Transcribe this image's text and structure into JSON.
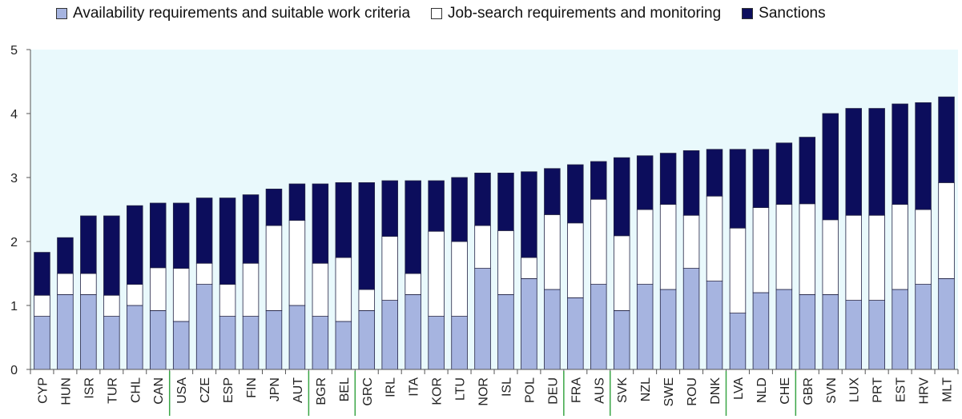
{
  "chart_data": {
    "type": "bar",
    "stacked": true,
    "title": "",
    "xlabel": "",
    "ylabel": "",
    "ylim": [
      0,
      5
    ],
    "yticks": [
      0,
      1,
      2,
      3,
      4,
      5
    ],
    "grid": false,
    "legend_position": "top",
    "plot_background": "#e9f9fc",
    "categories": [
      "CYP",
      "HUN",
      "ISR",
      "TUR",
      "CHL",
      "CAN",
      "USA",
      "CZE",
      "ESP",
      "FIN",
      "JPN",
      "AUT",
      "BGR",
      "BEL",
      "GRC",
      "IRL",
      "ITA",
      "KOR",
      "LTU",
      "NOR",
      "ISL",
      "POL",
      "DEU",
      "FRA",
      "AUS",
      "SVK",
      "NZL",
      "SWE",
      "ROU",
      "DNK",
      "LVA",
      "NLD",
      "CHE",
      "GBR",
      "SVN",
      "LUX",
      "PRT",
      "EST",
      "HRV",
      "MLT"
    ],
    "green_separator_before": [
      "USA",
      "BGR",
      "GRC",
      "FRA",
      "SVK",
      "LVA",
      "GBR"
    ],
    "series": [
      {
        "name": "Availability requirements and suitable work criteria",
        "color": "#a6b4e0",
        "values": [
          0.83,
          1.17,
          1.17,
          0.83,
          1.0,
          0.92,
          0.75,
          1.33,
          0.83,
          0.83,
          0.92,
          1.0,
          0.83,
          0.75,
          0.92,
          1.08,
          1.17,
          0.83,
          0.83,
          1.58,
          1.17,
          1.42,
          1.25,
          1.12,
          1.33,
          0.92,
          1.33,
          1.25,
          1.58,
          1.38,
          0.88,
          1.2,
          1.25,
          1.17,
          1.17,
          1.08,
          1.08,
          1.25,
          1.33,
          1.42
        ]
      },
      {
        "name": "Job-search requirements and monitoring",
        "color": "#ffffff",
        "values": [
          0.33,
          0.33,
          0.33,
          0.33,
          0.33,
          0.67,
          0.83,
          0.33,
          0.5,
          0.83,
          1.33,
          1.33,
          0.83,
          1.0,
          0.33,
          1.0,
          0.33,
          1.33,
          1.17,
          0.67,
          1.0,
          0.33,
          1.17,
          1.17,
          1.33,
          1.17,
          1.17,
          1.33,
          0.83,
          1.33,
          1.33,
          1.33,
          1.33,
          1.42,
          1.17,
          1.33,
          1.33,
          1.33,
          1.17,
          1.5
        ]
      },
      {
        "name": "Sanctions",
        "color": "#0c0d5c",
        "values": [
          0.67,
          0.56,
          0.9,
          1.24,
          1.23,
          1.01,
          1.02,
          1.02,
          1.35,
          1.07,
          0.57,
          0.57,
          1.24,
          1.17,
          1.67,
          0.87,
          1.45,
          0.79,
          1.0,
          0.82,
          0.9,
          1.34,
          0.72,
          0.91,
          0.59,
          1.22,
          0.84,
          0.8,
          1.01,
          0.73,
          1.23,
          0.91,
          0.96,
          1.04,
          1.66,
          1.67,
          1.67,
          1.57,
          1.67,
          1.34
        ]
      }
    ]
  }
}
